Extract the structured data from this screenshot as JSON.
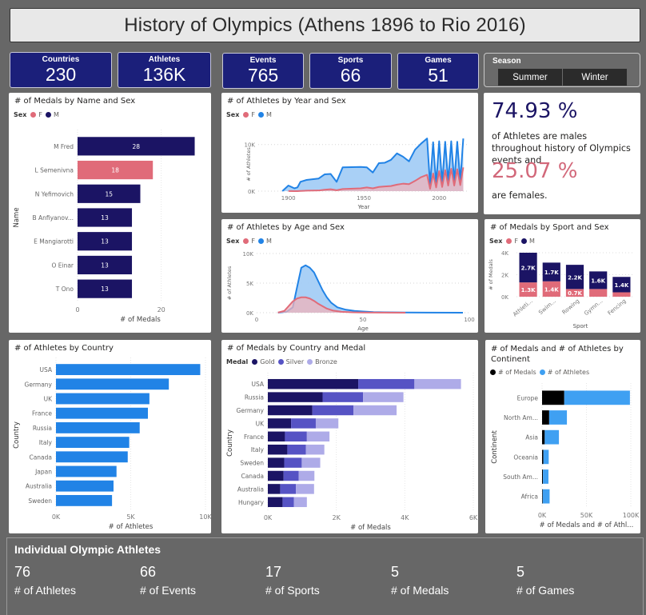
{
  "header": {
    "title": "History of Olympics (Athens 1896 to Rio 2016)"
  },
  "kpis": [
    {
      "label": "Countries",
      "value": "230"
    },
    {
      "label": "Athletes",
      "value": "136K"
    },
    {
      "label": "Events",
      "value": "765"
    },
    {
      "label": "Sports",
      "value": "66"
    },
    {
      "label": "Games",
      "value": "51"
    }
  ],
  "season_slicer": {
    "label": "Season",
    "options": [
      "Summer",
      "Winter"
    ]
  },
  "colors": {
    "male_dark": "#1b1464",
    "female": "#e06b79",
    "male_blue": "#2183e6",
    "male_blue_fill": "#a4cdf6",
    "female_fill": "#f0b3ba",
    "gold": "#1b1464",
    "silver": "#5653c4",
    "bronze": "#aeabe8",
    "medals_black": "#000000",
    "athletes_blue": "#3fa0f2"
  },
  "gender_card": {
    "male_pct": "74.93 %",
    "male_text": "of Athletes are males throughout history of Olympics events and",
    "female_pct": "25.07 %",
    "female_text": "are females."
  },
  "bottom": {
    "title": "Individual Olympic Athletes",
    "stats": [
      {
        "value": "76",
        "label": "# of Athletes"
      },
      {
        "value": "66",
        "label": "# of Events"
      },
      {
        "value": "17",
        "label": "# of Sports"
      },
      {
        "value": "5",
        "label": "# of Medals"
      },
      {
        "value": "5",
        "label": "# of Games"
      }
    ]
  },
  "chart_data": [
    {
      "id": "medals_by_name",
      "type": "bar",
      "title": "# of Medals by Name and Sex",
      "legend_title": "Sex",
      "legend": [
        "F",
        "M"
      ],
      "xlabel": "# of Medals",
      "ylabel": "Name",
      "categories": [
        "M Fred",
        "L Semenivna",
        "N Yefimovich",
        "B Anfiyanov...",
        "E Mangiarotti",
        "O Einar",
        "T Ono"
      ],
      "values": [
        28,
        18,
        15,
        13,
        13,
        13,
        13
      ],
      "sex": [
        "M",
        "F",
        "M",
        "M",
        "M",
        "M",
        "M"
      ],
      "xlim": [
        0,
        30
      ],
      "xticks": [
        0,
        20
      ],
      "xtick_labels": [
        "0",
        "20"
      ]
    },
    {
      "id": "athletes_by_year",
      "type": "area",
      "title": "# of Athletes by Year and Sex",
      "legend_title": "Sex",
      "legend": [
        "F",
        "M"
      ],
      "xlabel": "Year",
      "ylabel": "# of Athletes",
      "xlim": [
        1880,
        2020
      ],
      "ylim": [
        0,
        11500
      ],
      "xticks": [
        1900,
        1950,
        2000
      ],
      "yticks": [
        0,
        10000
      ],
      "ytick_labels": [
        "0K",
        "10K"
      ],
      "series": [
        {
          "name": "M",
          "x": [
            1896,
            1900,
            1904,
            1906,
            1908,
            1912,
            1920,
            1924,
            1928,
            1932,
            1936,
            1948,
            1952,
            1956,
            1960,
            1964,
            1968,
            1972,
            1976,
            1980,
            1984,
            1988,
            1992,
            1994,
            1996,
            1998,
            2000,
            2002,
            2004,
            2006,
            2008,
            2010,
            2012,
            2014,
            2016
          ],
          "values": [
            0,
            1200,
            600,
            800,
            2000,
            2400,
            2700,
            3600,
            3700,
            2000,
            5100,
            5200,
            5100,
            4000,
            6000,
            6100,
            6700,
            8100,
            7400,
            6400,
            8900,
            10200,
            11300,
            1300,
            10500,
            1500,
            10700,
            1700,
            10600,
            1900,
            10700,
            2000,
            10600,
            2100,
            11300
          ]
        },
        {
          "name": "F",
          "x": [
            1900,
            1904,
            1906,
            1908,
            1912,
            1920,
            1924,
            1928,
            1932,
            1936,
            1948,
            1952,
            1956,
            1960,
            1964,
            1968,
            1972,
            1976,
            1980,
            1984,
            1988,
            1992,
            1994,
            1996,
            1998,
            2000,
            2002,
            2004,
            2006,
            2008,
            2010,
            2012,
            2014,
            2016
          ],
          "values": [
            30,
            10,
            10,
            50,
            100,
            140,
            300,
            400,
            200,
            450,
            600,
            800,
            600,
            900,
            1000,
            1100,
            1400,
            1600,
            1500,
            2200,
            3000,
            3500,
            500,
            3800,
            800,
            4300,
            900,
            4500,
            1200,
            4800,
            1200,
            4700,
            1300,
            5100
          ]
        }
      ]
    },
    {
      "id": "athletes_by_age",
      "type": "area",
      "title": "# of Athletes by Age and Sex",
      "legend_title": "Sex",
      "legend": [
        "F",
        "M"
      ],
      "xlabel": "Age",
      "ylabel": "# of Athletes",
      "xlim": [
        0,
        100
      ],
      "ylim": [
        0,
        10000
      ],
      "xticks": [
        0,
        50,
        100
      ],
      "yticks": [
        0,
        5000,
        10000
      ],
      "ytick_labels": [
        "0K",
        "5K",
        "10K"
      ],
      "series": [
        {
          "name": "M",
          "x": [
            10,
            14,
            17,
            19,
            21,
            23,
            25,
            27,
            29,
            31,
            33,
            35,
            38,
            42,
            46,
            50,
            55,
            60,
            70,
            80,
            97
          ],
          "values": [
            10,
            150,
            900,
            4300,
            7600,
            8000,
            7600,
            6800,
            5300,
            3800,
            2600,
            1700,
            900,
            500,
            300,
            200,
            100,
            60,
            30,
            15,
            5
          ]
        },
        {
          "name": "F",
          "x": [
            10,
            13,
            15,
            17,
            19,
            21,
            23,
            25,
            27,
            29,
            31,
            33,
            36,
            40,
            45,
            50,
            60,
            70
          ],
          "values": [
            20,
            300,
            1100,
            1900,
            2400,
            2600,
            2600,
            2400,
            2000,
            1500,
            1100,
            700,
            350,
            150,
            60,
            30,
            10,
            5
          ]
        }
      ]
    },
    {
      "id": "medals_by_sport",
      "type": "bar",
      "stacked": true,
      "title": "# of Medals by Sport and Sex",
      "legend_title": "Sex",
      "legend": [
        "F",
        "M"
      ],
      "xlabel": "Sport",
      "ylabel": "# of Medals",
      "categories": [
        "Athleti...",
        "Swim...",
        "Rowing",
        "Gymn...",
        "Fencing"
      ],
      "ylim": [
        0,
        4000
      ],
      "yticks": [
        0,
        2000,
        4000
      ],
      "ytick_labels": [
        "0K",
        "2K",
        "4K"
      ],
      "series": [
        {
          "name": "F",
          "values": [
            1300,
            1400,
            700,
            700,
            400
          ],
          "labels": [
            "1.3K",
            "1.4K",
            "0.7K",
            "",
            ""
          ]
        },
        {
          "name": "M",
          "values": [
            2700,
            1700,
            2200,
            1600,
            1400
          ],
          "labels": [
            "2.7K",
            "1.7K",
            "2.2K",
            "1.6K",
            "1.4K"
          ]
        }
      ]
    },
    {
      "id": "athletes_by_country",
      "type": "bar",
      "title": "# of Athletes by Country",
      "xlabel": "# of Athletes",
      "ylabel": "Country",
      "categories": [
        "USA",
        "Germany",
        "UK",
        "France",
        "Russia",
        "Italy",
        "Canada",
        "Japan",
        "Australia",
        "Sweden"
      ],
      "values": [
        9650,
        7550,
        6250,
        6150,
        5600,
        4900,
        4800,
        4050,
        3850,
        3750
      ],
      "xlim": [
        0,
        10000
      ],
      "xticks": [
        0,
        5000,
        10000
      ],
      "xtick_labels": [
        "0K",
        "5K",
        "10K"
      ]
    },
    {
      "id": "medals_by_country",
      "type": "bar",
      "stacked": true,
      "title": "# of Medals by Country and Medal",
      "legend_title": "Medal",
      "legend": [
        "Gold",
        "Silver",
        "Bronze"
      ],
      "xlabel": "# of Medals",
      "ylabel": "Country",
      "categories": [
        "USA",
        "Russia",
        "Germany",
        "UK",
        "France",
        "Italy",
        "Sweden",
        "Canada",
        "Australia",
        "Hungary"
      ],
      "xlim": [
        0,
        6000
      ],
      "xticks": [
        0,
        2000,
        4000,
        6000
      ],
      "xtick_labels": [
        "0K",
        "2K",
        "4K",
        "6K"
      ],
      "series": [
        {
          "name": "Gold",
          "values": [
            2640,
            1600,
            1300,
            680,
            500,
            570,
            480,
            460,
            360,
            430
          ]
        },
        {
          "name": "Silver",
          "values": [
            1640,
            1180,
            1200,
            720,
            640,
            540,
            510,
            440,
            460,
            330
          ]
        },
        {
          "name": "Bronze",
          "values": [
            1360,
            1180,
            1260,
            660,
            660,
            540,
            540,
            460,
            530,
            380
          ]
        }
      ]
    },
    {
      "id": "medals_athletes_by_continent",
      "type": "bar",
      "stacked": true,
      "title": "# of Medals and # of Athletes by Continent",
      "legend": [
        "# of Medals",
        "# of Athletes"
      ],
      "xlabel": "# of Medals and # of Athl...",
      "ylabel": "Continent",
      "categories": [
        "Europe",
        "North Am...",
        "Asia",
        "Oceania",
        "South Am...",
        "Africa"
      ],
      "xlim": [
        0,
        100000
      ],
      "xticks": [
        0,
        50000,
        100000
      ],
      "xtick_labels": [
        "0K",
        "50K",
        "100K"
      ],
      "series": [
        {
          "name": "# of Medals",
          "values": [
            25000,
            8000,
            3000,
            1500,
            1000,
            700
          ]
        },
        {
          "name": "# of Athletes",
          "values": [
            74000,
            20000,
            16000,
            6000,
            6200,
            7800
          ]
        }
      ]
    }
  ]
}
